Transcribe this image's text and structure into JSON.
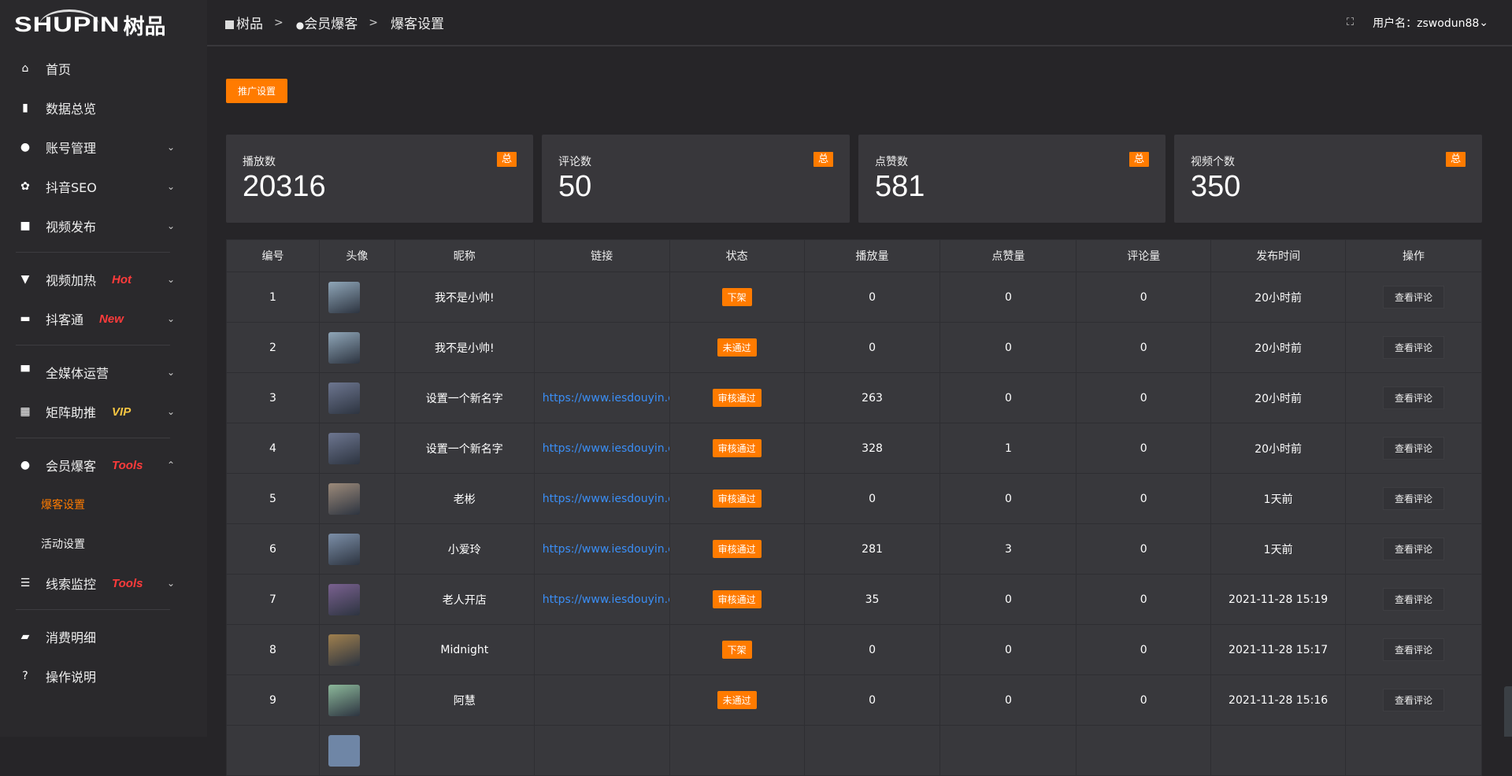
{
  "logo": {
    "text": "SHUPIN",
    "text_cn": "树品"
  },
  "breadcrumb": [
    {
      "label": "树品",
      "icon": "image-icon"
    },
    {
      "label": "会员爆客",
      "icon": "user-icon"
    },
    {
      "label": "爆客设置"
    }
  ],
  "breadcrumb_sep": ">",
  "header": {
    "fullscreen_icon": "fullscreen-icon",
    "user_label": "用户名：zswodun88",
    "chevron": "⌄"
  },
  "sidebar": {
    "items": [
      {
        "label": "首页",
        "icon": "home-icon",
        "glyph": "⌂"
      },
      {
        "label": "数据总览",
        "icon": "bar-chart-icon",
        "glyph": "▮"
      },
      {
        "label": "账号管理",
        "icon": "user-icon",
        "glyph": "●",
        "chevron": "⌄"
      },
      {
        "label": "抖音SEO",
        "icon": "gear-icon",
        "glyph": "✿",
        "chevron": "⌄"
      },
      {
        "label": "视频发布",
        "icon": "camera-icon",
        "glyph": "■",
        "chevron": "⌄"
      },
      {
        "label": "视频加热",
        "icon": "monitor-icon",
        "glyph": "▼",
        "tag": "Hot",
        "chevron": "⌄"
      },
      {
        "label": "抖客通",
        "icon": "chat-icon",
        "glyph": "▬",
        "tag": "New",
        "chevron": "⌄"
      },
      {
        "label": "全媒体运营",
        "icon": "desktop-icon",
        "glyph": "▀",
        "chevron": "⌄"
      },
      {
        "label": "矩阵助推",
        "icon": "grid-icon",
        "glyph": "▦",
        "tag": "VIP",
        "chevron": "⌄"
      },
      {
        "label": "会员爆客",
        "icon": "user-icon",
        "glyph": "●",
        "tag": "Tools",
        "chevron": "⌃"
      },
      {
        "label": "线索监控",
        "icon": "sliders-icon",
        "glyph": "☰",
        "tag": "Tools",
        "chevron": "⌄"
      },
      {
        "label": "消费明细",
        "icon": "wallet-icon",
        "glyph": "▰"
      },
      {
        "label": "操作说明",
        "icon": "help-icon",
        "glyph": "?"
      }
    ],
    "sub_items": [
      {
        "label": "爆客设置",
        "active": true
      },
      {
        "label": "活动设置"
      }
    ]
  },
  "promo_button": "推广设置",
  "stats": [
    {
      "label": "播放数",
      "value": "20316",
      "badge": "总"
    },
    {
      "label": "评论数",
      "value": "50",
      "badge": "总"
    },
    {
      "label": "点赞数",
      "value": "581",
      "badge": "总"
    },
    {
      "label": "视频个数",
      "value": "350",
      "badge": "总"
    }
  ],
  "table": {
    "columns": [
      "编号",
      "头像",
      "昵称",
      "链接",
      "状态",
      "播放量",
      "点赞量",
      "评论量",
      "发布时间",
      "操作"
    ],
    "rows": [
      {
        "id": "1",
        "avatar": "#8fa6b8",
        "name": "我不是小帅!",
        "link": "",
        "status": "下架",
        "plays": "0",
        "likes": "0",
        "comments": "0",
        "time": "20小时前",
        "action": "查看评论"
      },
      {
        "id": "2",
        "avatar": "#8fa6b8",
        "name": "我不是小帅!",
        "link": "",
        "status": "未通过",
        "plays": "0",
        "likes": "0",
        "comments": "0",
        "time": "20小时前",
        "action": "查看评论"
      },
      {
        "id": "3",
        "avatar": "#6d7690",
        "name": "设置一个新名字",
        "link": "https://www.iesdouyin.c",
        "status": "审核通过",
        "plays": "263",
        "likes": "0",
        "comments": "0",
        "time": "20小时前",
        "action": "查看评论"
      },
      {
        "id": "4",
        "avatar": "#6d7690",
        "name": "设置一个新名字",
        "link": "https://www.iesdouyin.c",
        "status": "审核通过",
        "plays": "328",
        "likes": "1",
        "comments": "0",
        "time": "20小时前",
        "action": "查看评论"
      },
      {
        "id": "5",
        "avatar": "#9c8a7a",
        "name": "老彬",
        "link": "https://www.iesdouyin.c",
        "status": "审核通过",
        "plays": "0",
        "likes": "0",
        "comments": "0",
        "time": "1天前",
        "action": "查看评论"
      },
      {
        "id": "6",
        "avatar": "#7c8fa8",
        "name": "小爱玲",
        "link": "https://www.iesdouyin.c",
        "status": "审核通过",
        "plays": "281",
        "likes": "3",
        "comments": "0",
        "time": "1天前",
        "action": "查看评论"
      },
      {
        "id": "7",
        "avatar": "#7a6190",
        "name": "老人开店",
        "link": "https://www.iesdouyin.c",
        "status": "审核通过",
        "plays": "35",
        "likes": "0",
        "comments": "0",
        "time": "2021-11-28 15:19",
        "action": "查看评论"
      },
      {
        "id": "8",
        "avatar": "#a0804e",
        "name": "Midnight",
        "link": "",
        "status": "下架",
        "plays": "0",
        "likes": "0",
        "comments": "0",
        "time": "2021-11-28 15:17",
        "action": "查看评论"
      },
      {
        "id": "9",
        "avatar": "#8cb89a",
        "name": "阿慧",
        "link": "",
        "status": "未通过",
        "plays": "0",
        "likes": "0",
        "comments": "0",
        "time": "2021-11-28 15:16",
        "action": "查看评论"
      }
    ]
  },
  "colors": {
    "accent": "#ff7b00",
    "link": "#3a8ef6",
    "tag_red": "#ff3b3b",
    "tag_vip": "#f5c542"
  }
}
